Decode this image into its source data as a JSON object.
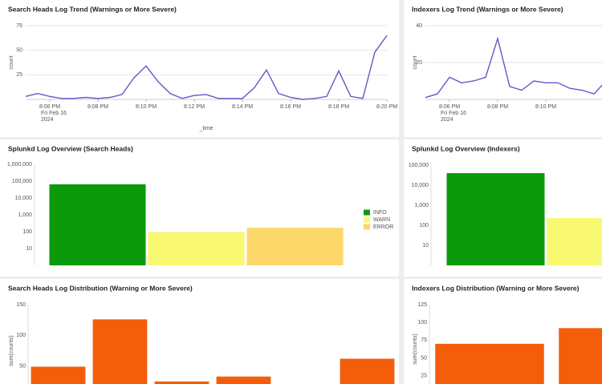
{
  "chart_data": [
    {
      "type": "line",
      "title": "Search Heads Log Trend (Warnings or More Severe)",
      "x": [
        "2024-02-16T20:05:00",
        "2024-02-16T20:05:30",
        "2024-02-16T20:06:00",
        "2024-02-16T20:06:30",
        "2024-02-16T20:07:00",
        "2024-02-16T20:07:30",
        "2024-02-16T20:08:00",
        "2024-02-16T20:08:30",
        "2024-02-16T20:09:00",
        "2024-02-16T20:09:30",
        "2024-02-16T20:10:00",
        "2024-02-16T20:10:30",
        "2024-02-16T20:11:00",
        "2024-02-16T20:11:30",
        "2024-02-16T20:12:00",
        "2024-02-16T20:12:30",
        "2024-02-16T20:13:00",
        "2024-02-16T20:13:30",
        "2024-02-16T20:14:00",
        "2024-02-16T20:14:30",
        "2024-02-16T20:15:00",
        "2024-02-16T20:15:30",
        "2024-02-16T20:16:00",
        "2024-02-16T20:16:30",
        "2024-02-16T20:17:00",
        "2024-02-16T20:17:30",
        "2024-02-16T20:18:00",
        "2024-02-16T20:18:30",
        "2024-02-16T20:19:00",
        "2024-02-16T20:19:30",
        "2024-02-16T20:20:00"
      ],
      "series": [
        {
          "color": "#6656c8",
          "values": [
            3,
            6,
            3,
            1,
            1,
            2,
            1,
            2,
            5,
            22,
            34,
            18,
            6,
            1,
            4,
            5,
            1,
            1,
            1,
            12,
            30,
            6,
            2,
            0,
            1,
            3,
            29,
            3,
            1,
            48,
            65
          ]
        }
      ],
      "xlim": [
        "2024-02-16T20:05:00",
        "2024-02-16T20:20:00"
      ],
      "xticks": [
        {
          "value": "2024-02-16T20:06:00",
          "label": "8:06 PM"
        },
        {
          "value": "2024-02-16T20:08:00",
          "label": "8:08 PM"
        },
        {
          "value": "2024-02-16T20:10:00",
          "label": "8:10 PM"
        },
        {
          "value": "2024-02-16T20:12:00",
          "label": "8:12 PM"
        },
        {
          "value": "2024-02-16T20:14:00",
          "label": "8:14 PM"
        },
        {
          "value": "2024-02-16T20:16:00",
          "label": "8:16 PM"
        },
        {
          "value": "2024-02-16T20:18:00",
          "label": "8:18 PM"
        },
        {
          "value": "2024-02-16T20:20:00",
          "label": "8:20 PM"
        }
      ],
      "x_sublabels": [
        "Fri Feb 16",
        "2024"
      ],
      "ylim": [
        0,
        75
      ],
      "yticks": [
        25,
        50,
        75
      ],
      "grid": true,
      "ylabel": "count",
      "xlabel": "_time"
    },
    {
      "type": "line",
      "title": "Indexers Log Trend (Warnings or More Severe)",
      "x": [
        "2024-02-16T20:05:00",
        "2024-02-16T20:05:30",
        "2024-02-16T20:06:00",
        "2024-02-16T20:06:30",
        "2024-02-16T20:07:00",
        "2024-02-16T20:07:30",
        "2024-02-16T20:08:00",
        "2024-02-16T20:08:30",
        "2024-02-16T20:09:00",
        "2024-02-16T20:09:30",
        "2024-02-16T20:10:00",
        "2024-02-16T20:10:30",
        "2024-02-16T20:11:00",
        "2024-02-16T20:11:30",
        "2024-02-16T20:12:00",
        "2024-02-16T20:12:30"
      ],
      "series": [
        {
          "color": "#6656c8",
          "values": [
            1,
            3,
            12,
            9,
            10,
            12,
            33,
            7,
            5,
            10,
            9,
            9,
            6,
            5,
            3,
            10
          ]
        }
      ],
      "xlim": [
        "2024-02-16T20:05:00",
        "2024-02-16T20:12:30"
      ],
      "xticks": [
        {
          "value": "2024-02-16T20:06:00",
          "label": "8:06 PM"
        },
        {
          "value": "2024-02-16T20:08:00",
          "label": "8:08 PM"
        },
        {
          "value": "2024-02-16T20:10:00",
          "label": "8:10 PM"
        }
      ],
      "x_sublabels": [
        "Fri Feb 16",
        "2024"
      ],
      "ylim": [
        0,
        40
      ],
      "yticks": [
        20,
        40
      ],
      "grid": true,
      "ylabel": "count"
    },
    {
      "type": "bar",
      "title": "Splunkd Log Overview (Search Heads)",
      "log_scale": true,
      "legend": "right",
      "categories": [
        null
      ],
      "series": [
        {
          "name": "INFO",
          "color": "#0b9a0b",
          "values": [
            65000
          ]
        },
        {
          "name": "WARN",
          "color": "#f9f871",
          "values": [
            95
          ]
        },
        {
          "name": "ERROR",
          "color": "#fdd76a",
          "values": [
            170
          ]
        }
      ],
      "ylim": [
        1,
        1000000
      ],
      "yticks": [
        10,
        100,
        {
          "value": 1000,
          "label": "1,000"
        },
        {
          "value": 10000,
          "label": "10,000"
        },
        {
          "value": 100000,
          "label": "100,000"
        },
        {
          "value": 1000000,
          "label": "1,000,000"
        }
      ]
    },
    {
      "type": "bar",
      "title": "Splunkd Log Overview (Indexers)",
      "log_scale": true,
      "categories": [
        null
      ],
      "series": [
        {
          "name": "INFO",
          "color": "#0b9a0b",
          "values": [
            40000
          ]
        },
        {
          "name": "WARN",
          "color": "#f9f871",
          "values": [
            230
          ]
        }
      ],
      "ylim": [
        1,
        100000
      ],
      "yticks": [
        10,
        100,
        {
          "value": 1000,
          "label": "1,000"
        },
        {
          "value": 10000,
          "label": "10,000"
        },
        {
          "value": 100000,
          "label": "100,000"
        }
      ]
    },
    {
      "type": "bar",
      "title": "Search Heads Log Distribution (Warning or More Severe)",
      "categories": [
        null,
        null,
        null,
        null,
        null,
        null
      ],
      "values": [
        49,
        126,
        25,
        33,
        null,
        62
      ],
      "color": "#f45d0a",
      "ylim": [
        0,
        150
      ],
      "yticks": [
        50,
        100,
        150
      ],
      "ylabel": "sum(counts)"
    },
    {
      "type": "bar",
      "title": "Indexers Log Distribution (Warning or More Severe)",
      "categories": [
        null,
        null
      ],
      "values": [
        70,
        92
      ],
      "color": "#f45d0a",
      "ylim": [
        0,
        125
      ],
      "yticks": [
        25,
        50,
        75,
        100,
        125
      ],
      "ylabel": "sum(counts)"
    }
  ]
}
